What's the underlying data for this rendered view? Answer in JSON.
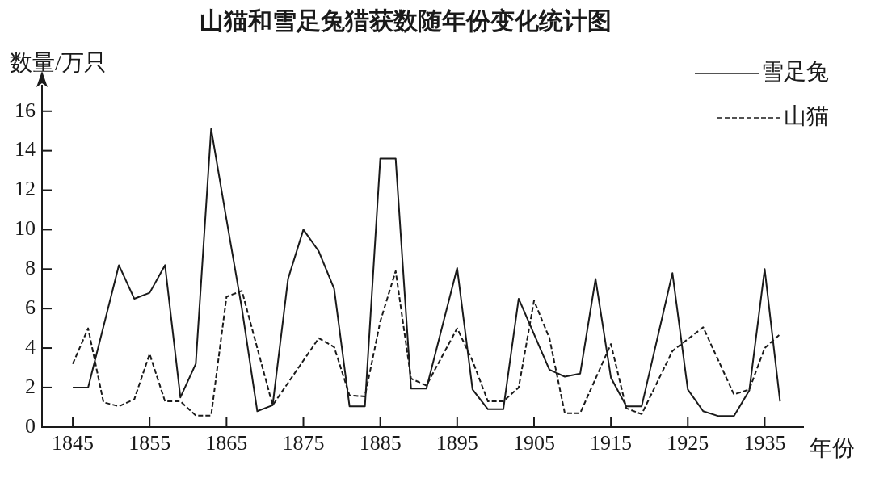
{
  "chart_data": {
    "type": "line",
    "title": "山猫和雪足兔猎获数随年份变化统计图",
    "xlabel": "年份",
    "ylabel": "数量/万只",
    "xlim": [
      1841,
      1940
    ],
    "xticks": [
      1845,
      1855,
      1865,
      1875,
      1885,
      1895,
      1905,
      1915,
      1925,
      1935
    ],
    "ylim": [
      0,
      17.3
    ],
    "yticks": [
      0,
      2,
      4,
      6,
      8,
      10,
      12,
      14,
      16
    ],
    "grid": false,
    "legend": "top right",
    "marker": "none",
    "series": [
      {
        "name": "雪足兔",
        "color": "#1a1a1a",
        "line_style": "solid",
        "x": [
          1845,
          1847,
          1851,
          1853,
          1855,
          1857,
          1859,
          1861,
          1863,
          1865,
          1867,
          1869,
          1871,
          1873,
          1875,
          1877,
          1879,
          1881,
          1883,
          1885,
          1887,
          1889,
          1891,
          1895,
          1897,
          1899,
          1901,
          1903,
          1907,
          1909,
          1911,
          1913,
          1915,
          1917,
          1919,
          1923,
          1925,
          1927,
          1929,
          1931,
          1933,
          1935,
          1937
        ],
        "values": [
          2.0,
          2.0,
          8.2,
          6.5,
          6.8,
          8.2,
          1.5,
          3.2,
          15.1,
          10.5,
          6.0,
          0.8,
          1.1,
          7.5,
          10.0,
          8.9,
          7.0,
          1.05,
          1.05,
          13.6,
          13.6,
          1.95,
          1.95,
          8.05,
          1.9,
          0.9,
          0.9,
          6.5,
          2.9,
          2.55,
          2.7,
          7.5,
          2.5,
          1.05,
          1.05,
          7.8,
          1.9,
          0.8,
          0.55,
          0.55,
          1.85,
          8.0,
          1.3
        ]
      },
      {
        "name": "山猫",
        "color": "#1a1a1a",
        "line_style": "dashed",
        "x": [
          1845,
          1847,
          1849,
          1851,
          1853,
          1855,
          1857,
          1859,
          1861,
          1863,
          1865,
          1867,
          1871,
          1877,
          1879,
          1881,
          1883,
          1885,
          1887,
          1889,
          1891,
          1895,
          1897,
          1899,
          1901,
          1903,
          1905,
          1907,
          1909,
          1911,
          1915,
          1917,
          1919,
          1923,
          1927,
          1931,
          1933,
          1935,
          1937
        ],
        "values": [
          3.2,
          5.0,
          1.25,
          1.05,
          1.4,
          3.7,
          1.3,
          1.3,
          0.58,
          0.58,
          6.6,
          6.9,
          1.1,
          4.5,
          4.05,
          1.6,
          1.55,
          5.35,
          7.9,
          2.45,
          2.1,
          5.0,
          3.35,
          1.3,
          1.3,
          2.0,
          6.4,
          4.5,
          0.7,
          0.7,
          4.2,
          0.95,
          0.65,
          3.85,
          5.05,
          1.65,
          1.9,
          4.0,
          4.7
        ]
      }
    ]
  }
}
